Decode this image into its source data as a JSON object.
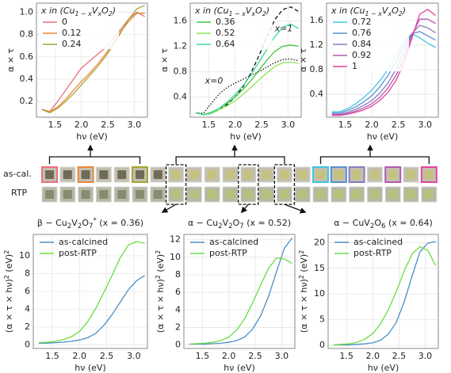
{
  "chart_data": [
    {
      "type": "line",
      "legend_title": [
        "x in (Cu",
        "1 − x",
        "V",
        "x",
        "O",
        "2",
        ")"
      ],
      "legend_title_scripts": [
        "normal",
        "sub",
        "normal",
        "sub",
        "normal",
        "sub",
        "normal"
      ],
      "xlabel": [
        "hν (eV)"
      ],
      "xlabel_scripts": [
        "normal"
      ],
      "ylabel": [
        "α × τ"
      ],
      "ylabel_scripts": [
        "normal"
      ],
      "xlim": [
        1.15,
        3.25
      ],
      "ylim": [
        0.06,
        1.08
      ],
      "xticks": [
        1.5,
        {
          "value": 2,
          "label": "2.0"
        },
        2.5,
        {
          "value": 3,
          "label": "3.0"
        }
      ],
      "yticks": [
        0.2,
        0.4,
        0.6,
        0.8,
        {
          "value": 1,
          "label": "1.0"
        }
      ],
      "grid": true,
      "legend": "upper left",
      "x": [
        1.25,
        1.4,
        1.55,
        1.7,
        1.85,
        2.0,
        2.15,
        2.3,
        2.45,
        2.6,
        2.75,
        2.9,
        3.05,
        3.2
      ],
      "series": [
        {
          "name": "0",
          "color": "#ec6f7c",
          "values": [
            0.13,
            0.11,
            0.2,
            0.3,
            0.4,
            0.5,
            0.56,
            0.62,
            0.68,
            0.76,
            0.85,
            0.94,
            1.0,
            0.96
          ]
        },
        {
          "name": "0.12",
          "color": "#e8893a",
          "values": [
            0.13,
            0.11,
            0.15,
            0.22,
            0.3,
            0.38,
            0.45,
            0.53,
            0.62,
            0.72,
            0.83,
            0.92,
            0.99,
            0.99
          ]
        },
        {
          "name": "0.24",
          "color": "#a9a332",
          "values": [
            0.13,
            0.1,
            0.14,
            0.2,
            0.27,
            0.35,
            0.43,
            0.51,
            0.6,
            0.7,
            0.82,
            0.94,
            1.03,
            1.06
          ]
        }
      ]
    },
    {
      "type": "line",
      "legend_title": [
        "x in (Cu",
        "1 − x",
        "V",
        "x",
        "O",
        "2",
        ")"
      ],
      "legend_title_scripts": [
        "normal",
        "sub",
        "normal",
        "sub",
        "normal",
        "sub",
        "normal"
      ],
      "xlabel": [
        "hν (eV)"
      ],
      "xlabel_scripts": [
        "normal"
      ],
      "ylabel": [
        "α × τ"
      ],
      "ylabel_scripts": [
        "normal"
      ],
      "xlim": [
        1.15,
        3.25
      ],
      "ylim": [
        0.08,
        1.88
      ],
      "xticks": [
        1.5,
        {
          "value": 2,
          "label": "2.0"
        },
        2.5,
        {
          "value": 3,
          "label": "3.0"
        }
      ],
      "yticks": [
        0.4,
        0.8,
        1.2,
        1.6
      ],
      "grid": true,
      "legend": "upper left",
      "x": [
        1.25,
        1.4,
        1.55,
        1.7,
        1.85,
        2.0,
        2.15,
        2.3,
        2.45,
        2.6,
        2.75,
        2.9,
        3.05,
        3.2
      ],
      "series": [
        {
          "name": "0.36",
          "color": "#3fc53f",
          "values": [
            0.15,
            0.12,
            0.16,
            0.22,
            0.3,
            0.4,
            0.52,
            0.66,
            0.82,
            0.98,
            1.12,
            1.2,
            1.22,
            1.2
          ]
        },
        {
          "name": "0.52",
          "color": "#8fe35a",
          "values": [
            0.15,
            0.12,
            0.14,
            0.2,
            0.26,
            0.34,
            0.44,
            0.55,
            0.67,
            0.78,
            0.88,
            0.94,
            0.95,
            0.93
          ]
        },
        {
          "name": "0.64",
          "color": "#3ed99a",
          "values": [
            0.15,
            0.12,
            0.15,
            0.22,
            0.32,
            0.44,
            0.58,
            0.75,
            0.95,
            1.15,
            1.35,
            1.5,
            1.55,
            1.48
          ]
        }
      ],
      "reference_series": [
        {
          "label": "x=1",
          "style": "dashed",
          "color": "#111111",
          "values": [
            0.15,
            0.12,
            0.14,
            0.2,
            0.28,
            0.4,
            0.56,
            0.78,
            1.05,
            1.35,
            1.62,
            1.78,
            1.82,
            1.75
          ]
        },
        {
          "label": "x=0",
          "style": "dotted",
          "color": "#111111",
          "values": [
            0.15,
            0.14,
            0.3,
            0.45,
            0.55,
            0.62,
            0.68,
            0.74,
            0.8,
            0.87,
            0.94,
            0.99,
            1.0,
            0.97
          ]
        }
      ]
    },
    {
      "type": "line",
      "legend_title": [
        "x in (Cu",
        "1 − x",
        "V",
        "x",
        "O",
        "2",
        ")"
      ],
      "legend_title_scripts": [
        "normal",
        "sub",
        "normal",
        "sub",
        "normal",
        "sub",
        "normal"
      ],
      "xlabel": [
        "hν (eV)"
      ],
      "xlabel_scripts": [
        "normal"
      ],
      "ylabel": [
        "α × τ"
      ],
      "ylabel_scripts": [
        "normal"
      ],
      "xlim": [
        1.15,
        3.25
      ],
      "ylim": [
        0.03,
        1.88
      ],
      "xticks": [
        1.5,
        {
          "value": 2,
          "label": "2.0"
        },
        2.5,
        {
          "value": 3,
          "label": "3.0"
        }
      ],
      "yticks": [
        0.4,
        0.8,
        1.2,
        1.6
      ],
      "grid": true,
      "legend": "upper left",
      "x": [
        1.25,
        1.4,
        1.55,
        1.7,
        1.85,
        2.0,
        2.15,
        2.3,
        2.45,
        2.6,
        2.75,
        2.9,
        3.05,
        3.2
      ],
      "series": [
        {
          "name": "0.72",
          "color": "#40c6e2",
          "values": [
            0.12,
            0.12,
            0.17,
            0.25,
            0.35,
            0.47,
            0.62,
            0.8,
            1.02,
            1.25,
            1.38,
            1.32,
            1.23,
            1.16
          ]
        },
        {
          "name": "0.76",
          "color": "#5b8fcf",
          "values": [
            0.1,
            0.1,
            0.14,
            0.2,
            0.28,
            0.38,
            0.52,
            0.7,
            0.92,
            1.18,
            1.38,
            1.42,
            1.35,
            1.28
          ]
        },
        {
          "name": "0.84",
          "color": "#8c7bbf",
          "values": [
            0.08,
            0.08,
            0.11,
            0.16,
            0.22,
            0.3,
            0.42,
            0.58,
            0.8,
            1.08,
            1.38,
            1.52,
            1.48,
            1.4
          ]
        },
        {
          "name": "0.92",
          "color": "#b05aae",
          "values": [
            0.07,
            0.07,
            0.09,
            0.13,
            0.18,
            0.25,
            0.35,
            0.5,
            0.7,
            0.98,
            1.35,
            1.62,
            1.62,
            1.55
          ]
        },
        {
          "name": "1",
          "color": "#e5439e",
          "values": [
            0.06,
            0.06,
            0.08,
            0.11,
            0.15,
            0.21,
            0.3,
            0.43,
            0.62,
            0.9,
            1.3,
            1.7,
            1.78,
            1.68
          ]
        }
      ]
    },
    {
      "type": "line",
      "title": [
        "β − Cu",
        "2",
        "V",
        "2",
        "O",
        "7",
        "*",
        " (x = 0.36)"
      ],
      "title_scripts": [
        "normal",
        "sub",
        "normal",
        "sub",
        "normal",
        "sub",
        "sup",
        "normal"
      ],
      "xlabel": [
        "hν (eV)"
      ],
      "xlabel_scripts": [
        "normal"
      ],
      "ylabel": [
        "(α × τ × hν)",
        "2",
        " (eV)",
        "2"
      ],
      "ylabel_scripts": [
        "normal",
        "sup",
        "normal",
        "sup"
      ],
      "xlim": [
        1.15,
        3.25
      ],
      "ylim": [
        -0.4,
        12.4
      ],
      "xticks": [
        1.5,
        {
          "value": 2,
          "label": "2.0"
        },
        2.5,
        {
          "value": 3,
          "label": "3.0"
        }
      ],
      "yticks": [
        0,
        2,
        4,
        6,
        8,
        10
      ],
      "grid": true,
      "legend": "upper left",
      "x": [
        1.25,
        1.4,
        1.55,
        1.7,
        1.85,
        2.0,
        2.15,
        2.3,
        2.45,
        2.6,
        2.75,
        2.9,
        3.05,
        3.2
      ],
      "series": [
        {
          "name": "as-calcined",
          "color": "#4a8fc6",
          "values": [
            0.2,
            0.2,
            0.25,
            0.3,
            0.4,
            0.55,
            0.8,
            1.3,
            2.2,
            3.4,
            4.8,
            6.2,
            7.2,
            7.8
          ]
        },
        {
          "name": "post-RTP",
          "color": "#6add45",
          "values": [
            0.25,
            0.3,
            0.4,
            0.6,
            0.9,
            1.5,
            2.6,
            4.1,
            5.9,
            7.8,
            9.8,
            11.2,
            11.6,
            11.4
          ]
        }
      ]
    },
    {
      "type": "line",
      "title": [
        "α − Cu",
        "2",
        "V",
        "2",
        "O",
        "7",
        " (x = 0.52)"
      ],
      "title_scripts": [
        "normal",
        "sub",
        "normal",
        "sub",
        "normal",
        "sub",
        "normal"
      ],
      "xlabel": [
        "hν (eV)"
      ],
      "xlabel_scripts": [
        "normal"
      ],
      "ylabel": [
        "(α × τ × hν)",
        "2",
        " (eV)",
        "2"
      ],
      "ylabel_scripts": [
        "normal",
        "sup",
        "normal",
        "sup"
      ],
      "xlim": [
        1.15,
        3.25
      ],
      "ylim": [
        -0.4,
        12.6
      ],
      "xticks": [
        1.5,
        {
          "value": 2,
          "label": "2.0"
        },
        2.5,
        {
          "value": 3,
          "label": "3.0"
        }
      ],
      "yticks": [
        0,
        2,
        4,
        6,
        8,
        10,
        12
      ],
      "grid": true,
      "legend": "upper left",
      "x": [
        1.25,
        1.4,
        1.55,
        1.7,
        1.85,
        2.0,
        2.15,
        2.3,
        2.45,
        2.6,
        2.75,
        2.9,
        3.05,
        3.2
      ],
      "series": [
        {
          "name": "as-calcined",
          "color": "#4a8fc6",
          "values": [
            0.1,
            0.1,
            0.1,
            0.15,
            0.2,
            0.3,
            0.5,
            0.9,
            1.8,
            3.3,
            5.5,
            8.3,
            11,
            12.2
          ]
        },
        {
          "name": "post-RTP",
          "color": "#6add45",
          "values": [
            0.1,
            0.15,
            0.2,
            0.3,
            0.5,
            0.9,
            1.7,
            3.0,
            4.8,
            6.8,
            8.7,
            9.9,
            9.8,
            9.3
          ]
        }
      ]
    },
    {
      "type": "line",
      "title": [
        "α − CuV",
        "2",
        "O",
        "6",
        " (x = 0.64)"
      ],
      "title_scripts": [
        "normal",
        "sub",
        "normal",
        "sub",
        "normal"
      ],
      "xlabel": [
        "hν (eV)"
      ],
      "xlabel_scripts": [
        "normal"
      ],
      "ylabel": [
        "(α × τ × hν)",
        "2",
        " (eV)",
        "2"
      ],
      "ylabel_scripts": [
        "normal",
        "sup",
        "normal",
        "sup"
      ],
      "xlim": [
        1.15,
        3.25
      ],
      "ylim": [
        -0.6,
        21.6
      ],
      "xticks": [
        1.5,
        {
          "value": 2,
          "label": "2.0"
        },
        2.5,
        {
          "value": 3,
          "label": "3.0"
        }
      ],
      "yticks": [
        0,
        5,
        10,
        15,
        20
      ],
      "grid": true,
      "legend": "upper left",
      "x": [
        1.25,
        1.4,
        1.55,
        1.7,
        1.85,
        2.0,
        2.15,
        2.3,
        2.45,
        2.6,
        2.75,
        2.9,
        3.05,
        3.2
      ],
      "series": [
        {
          "name": "as-calcined",
          "color": "#4a8fc6",
          "values": [
            0.1,
            0.1,
            0.1,
            0.2,
            0.3,
            0.5,
            1.0,
            2.2,
            4.5,
            8.5,
            13.5,
            18.2,
            19.9,
            20.2
          ]
        },
        {
          "name": "post-RTP",
          "color": "#6add45",
          "values": [
            0.1,
            0.2,
            0.3,
            0.6,
            1.2,
            2.3,
            4.2,
            7.0,
            10.5,
            14.5,
            17.8,
            19.2,
            18.5,
            15.5
          ]
        }
      ]
    }
  ],
  "sample_strip": {
    "row_labels": [
      "as-cal.",
      "RTP"
    ]
  }
}
